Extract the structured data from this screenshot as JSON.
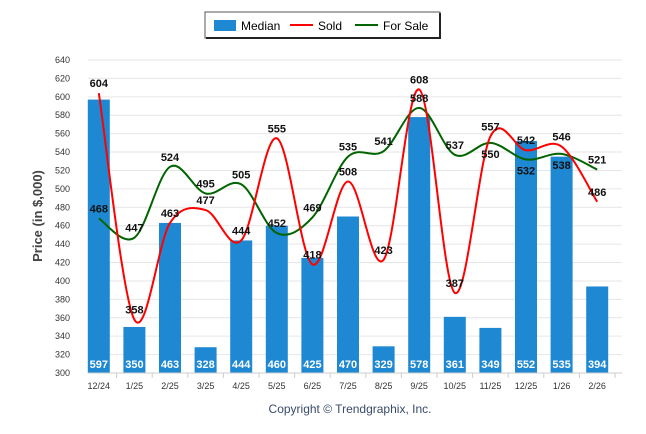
{
  "chart_data": {
    "type": "bar",
    "title": "",
    "xlabel": "",
    "ylabel": "Price (in $,000)",
    "ylim": [
      300,
      640
    ],
    "ytick_step": 20,
    "grid": true,
    "legend_position": "top-center",
    "categories": [
      "12/24",
      "1/25",
      "2/25",
      "3/25",
      "4/25",
      "5/25",
      "6/25",
      "7/25",
      "8/25",
      "9/25",
      "10/25",
      "11/25",
      "12/25",
      "1/26",
      "2/26"
    ],
    "series": [
      {
        "name": "Median",
        "type": "bar",
        "color": "#1e88d2",
        "values": [
          597,
          350,
          463,
          328,
          444,
          460,
          425,
          470,
          329,
          578,
          361,
          349,
          552,
          535,
          394
        ]
      },
      {
        "name": "Sold",
        "type": "line",
        "color": "#ff0000",
        "values": [
          604,
          358,
          463,
          477,
          444,
          555,
          418,
          508,
          423,
          608,
          387,
          557,
          542,
          546,
          486
        ]
      },
      {
        "name": "For Sale",
        "type": "line",
        "color": "#006400",
        "values": [
          468,
          447,
          524,
          495,
          505,
          452,
          469,
          535,
          541,
          588,
          537,
          550,
          532,
          538,
          521
        ]
      }
    ]
  },
  "footer": {
    "copyright": "Copyright © Trendgraphix, Inc."
  }
}
